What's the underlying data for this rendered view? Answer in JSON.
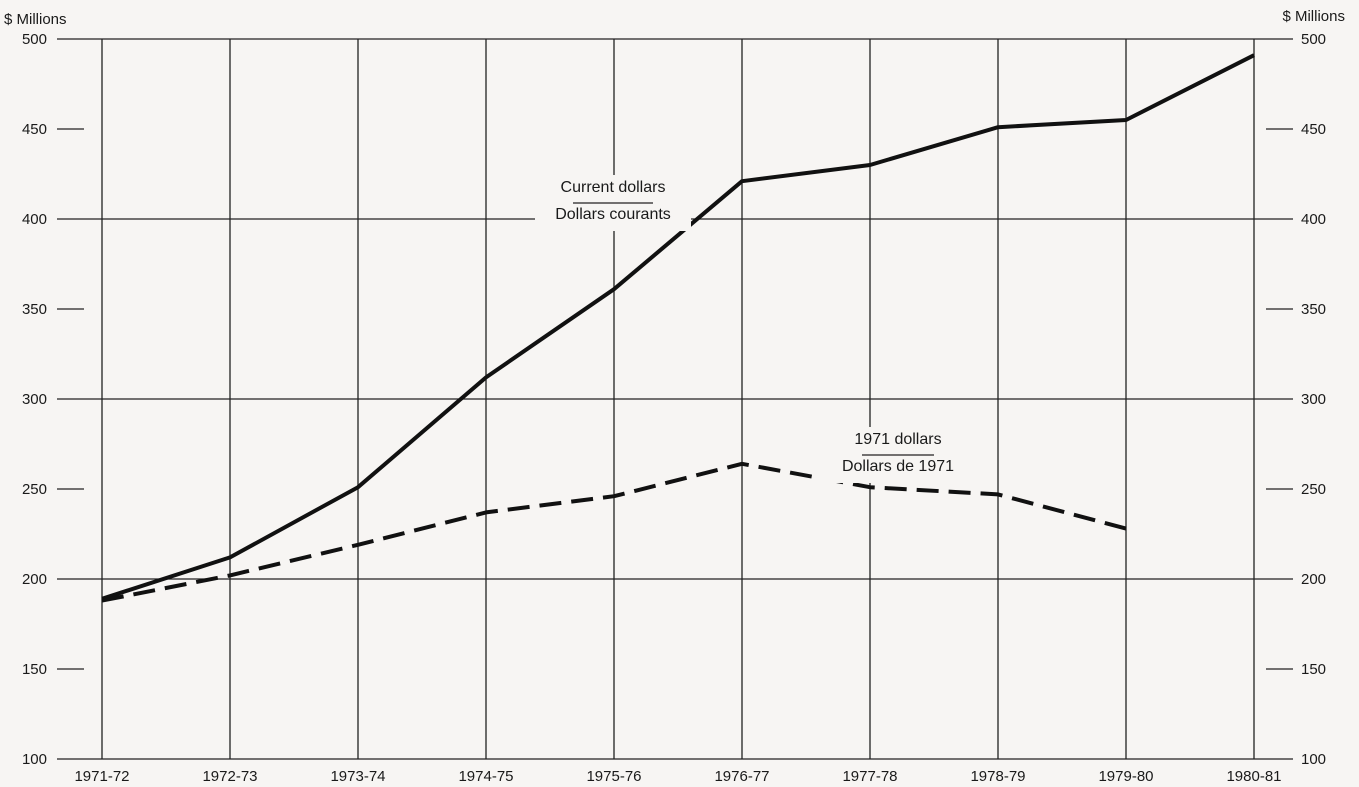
{
  "chart_data": {
    "type": "line",
    "title": "",
    "xlabel": "",
    "ylabel_left": "$ Millions",
    "ylabel_right": "$ Millions",
    "ylim": [
      100,
      500
    ],
    "yticks": [
      100,
      150,
      200,
      250,
      300,
      350,
      400,
      450,
      500
    ],
    "grid": true,
    "categories": [
      "1971-72",
      "1972-73",
      "1973-74",
      "1974-75",
      "1975-76",
      "1976-77",
      "1977-78",
      "1978-79",
      "1979-80",
      "1980-81"
    ],
    "series": [
      {
        "label_lines": [
          "Current dollars",
          "Dollars courants"
        ],
        "style": "solid",
        "color": "#111111",
        "values": [
          189,
          212,
          251,
          312,
          361,
          421,
          430,
          451,
          455,
          491
        ]
      },
      {
        "label_lines": [
          "1971 dollars",
          "Dollars de 1971"
        ],
        "style": "dashed",
        "color": "#111111",
        "values": [
          188,
          202,
          219,
          237,
          246,
          264,
          251,
          247,
          228,
          null
        ]
      }
    ]
  }
}
